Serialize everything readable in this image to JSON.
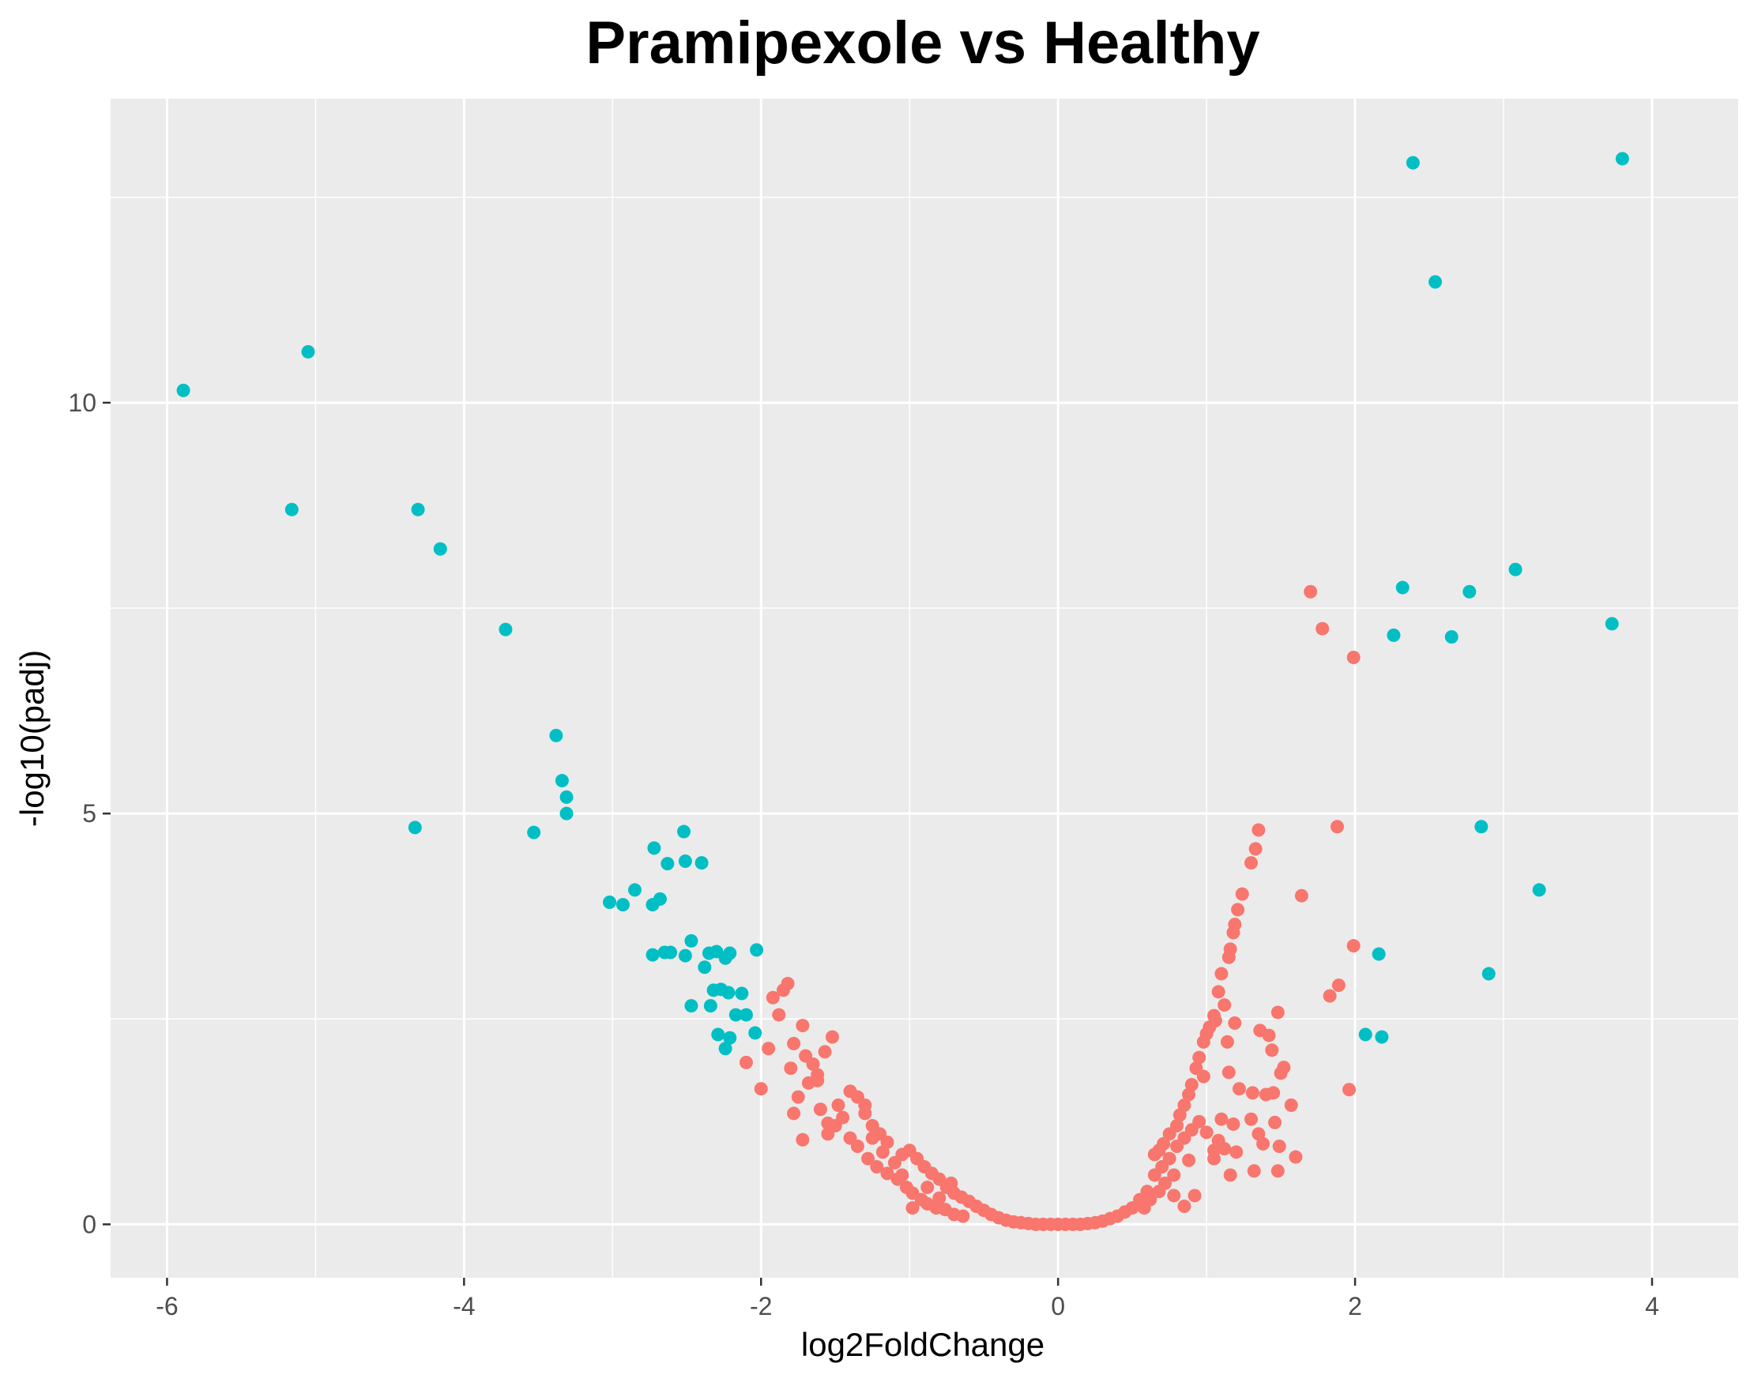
{
  "chart_data": {
    "type": "scatter",
    "title": "Pramipexole vs Healthy",
    "xlabel": "log2FoldChange",
    "ylabel": "-log10(padj)",
    "xlim": [
      -6.38,
      4.58
    ],
    "ylim": [
      -0.65,
      13.7
    ],
    "x_ticks": [
      -6,
      -4,
      -2,
      0,
      2,
      4
    ],
    "y_ticks": [
      0,
      5,
      10
    ],
    "grid": true,
    "legend": "none",
    "colors": {
      "panel": "#EBEBEB",
      "grid": "#FFFFFF",
      "significant": "#00BFC4",
      "not_significant": "#F8766D",
      "tick_text": "#4D4D4D"
    },
    "series": [
      {
        "color": "#00BFC4",
        "points": [
          [
            -5.89,
            10.15
          ],
          [
            -5.05,
            10.62
          ],
          [
            -5.16,
            8.7
          ],
          [
            -4.31,
            8.7
          ],
          [
            -4.16,
            8.22
          ],
          [
            -3.72,
            7.24
          ],
          [
            -4.33,
            4.83
          ],
          [
            -3.38,
            5.95
          ],
          [
            -3.34,
            5.4
          ],
          [
            -3.31,
            5.2
          ],
          [
            -3.31,
            5.0
          ],
          [
            -3.53,
            4.77
          ],
          [
            -2.72,
            4.58
          ],
          [
            -2.63,
            4.39
          ],
          [
            -2.52,
            4.78
          ],
          [
            -2.51,
            4.42
          ],
          [
            -2.4,
            4.4
          ],
          [
            -3.02,
            3.92
          ],
          [
            -2.93,
            3.89
          ],
          [
            -2.85,
            4.07
          ],
          [
            -2.73,
            3.89
          ],
          [
            -2.68,
            3.96
          ],
          [
            -2.73,
            3.28
          ],
          [
            -2.65,
            3.31
          ],
          [
            -2.61,
            3.31
          ],
          [
            -2.51,
            3.27
          ],
          [
            -2.47,
            3.45
          ],
          [
            -2.38,
            3.13
          ],
          [
            -2.35,
            3.3
          ],
          [
            -2.3,
            3.32
          ],
          [
            -2.24,
            3.24
          ],
          [
            -2.21,
            3.3
          ],
          [
            -2.03,
            3.34
          ],
          [
            -2.47,
            2.66
          ],
          [
            -2.32,
            2.85
          ],
          [
            -2.27,
            2.86
          ],
          [
            -2.22,
            2.82
          ],
          [
            -2.34,
            2.66
          ],
          [
            -2.13,
            2.81
          ],
          [
            -2.17,
            2.55
          ],
          [
            -2.1,
            2.55
          ],
          [
            -2.04,
            2.33
          ],
          [
            -2.29,
            2.31
          ],
          [
            -2.21,
            2.27
          ],
          [
            -2.24,
            2.14
          ],
          [
            2.39,
            12.92
          ],
          [
            2.54,
            11.47
          ],
          [
            3.8,
            12.97
          ],
          [
            2.32,
            7.75
          ],
          [
            2.26,
            7.17
          ],
          [
            2.65,
            7.15
          ],
          [
            2.77,
            7.7
          ],
          [
            3.08,
            7.97
          ],
          [
            3.73,
            7.31
          ],
          [
            2.85,
            4.84
          ],
          [
            3.24,
            4.07
          ],
          [
            2.16,
            3.29
          ],
          [
            2.9,
            3.05
          ],
          [
            2.07,
            2.31
          ],
          [
            2.18,
            2.28
          ]
        ]
      },
      {
        "color": "#F8766D",
        "points": [
          [
            1.7,
            7.7
          ],
          [
            1.78,
            7.25
          ],
          [
            1.99,
            6.9
          ],
          [
            1.88,
            4.84
          ],
          [
            1.64,
            4.0
          ],
          [
            1.99,
            3.39
          ],
          [
            1.89,
            2.91
          ],
          [
            1.83,
            2.78
          ],
          [
            1.96,
            1.64
          ],
          [
            1.48,
            2.58
          ],
          [
            1.36,
            2.36
          ],
          [
            1.42,
            2.3
          ],
          [
            1.44,
            2.12
          ],
          [
            1.52,
            1.91
          ],
          [
            1.5,
            1.84
          ],
          [
            1.45,
            1.6
          ],
          [
            1.4,
            1.58
          ],
          [
            1.31,
            1.6
          ],
          [
            1.57,
            1.45
          ],
          [
            1.46,
            1.24
          ],
          [
            1.35,
            1.1
          ],
          [
            1.38,
            0.98
          ],
          [
            1.49,
            0.95
          ],
          [
            1.6,
            0.82
          ],
          [
            1.48,
            0.65
          ],
          [
            1.32,
            0.65
          ],
          [
            1.33,
            4.57
          ],
          [
            1.35,
            4.8
          ],
          [
            1.3,
            4.4
          ],
          [
            1.24,
            4.02
          ],
          [
            1.21,
            3.83
          ],
          [
            1.19,
            3.65
          ],
          [
            1.18,
            3.55
          ],
          [
            1.16,
            3.35
          ],
          [
            1.15,
            3.25
          ],
          [
            1.1,
            3.05
          ],
          [
            1.08,
            2.83
          ],
          [
            1.12,
            2.67
          ],
          [
            1.05,
            2.54
          ],
          [
            1.06,
            2.48
          ],
          [
            1.02,
            2.4
          ],
          [
            1.0,
            2.32
          ],
          [
            0.98,
            2.22
          ],
          [
            1.14,
            2.22
          ],
          [
            0.95,
            2.03
          ],
          [
            0.93,
            1.9
          ],
          [
            0.98,
            1.8
          ],
          [
            0.9,
            1.7
          ],
          [
            0.88,
            1.58
          ],
          [
            0.85,
            1.45
          ],
          [
            0.82,
            1.33
          ],
          [
            0.8,
            1.2
          ],
          [
            0.75,
            1.1
          ],
          [
            0.71,
            0.98
          ],
          [
            0.68,
            0.9
          ],
          [
            0.65,
            0.85
          ],
          [
            1.19,
            2.45
          ],
          [
            1.15,
            1.85
          ],
          [
            1.22,
            1.65
          ],
          [
            1.3,
            1.28
          ],
          [
            1.18,
            1.22
          ],
          [
            1.1,
            1.28
          ],
          [
            1.08,
            1.02
          ],
          [
            1.12,
            0.92
          ],
          [
            1.2,
            0.88
          ],
          [
            1.16,
            0.6
          ],
          [
            1.05,
            0.8
          ],
          [
            0.92,
            0.35
          ],
          [
            0.85,
            0.22
          ],
          [
            0.78,
            0.35
          ],
          [
            0.6,
            0.4
          ],
          [
            0.55,
            0.3
          ],
          [
            0.5,
            0.2
          ],
          [
            0.45,
            0.15
          ],
          [
            0.4,
            0.1
          ],
          [
            0.35,
            0.07
          ],
          [
            0.3,
            0.04
          ],
          [
            0.25,
            0.02
          ],
          [
            0.2,
            0.01
          ],
          [
            0.15,
            0.0
          ],
          [
            0.1,
            0.0
          ],
          [
            0.05,
            0.0
          ],
          [
            0.0,
            0.0
          ],
          [
            -0.05,
            0.0
          ],
          [
            -0.1,
            0.0
          ],
          [
            -0.15,
            0.0
          ],
          [
            -0.2,
            0.01
          ],
          [
            -0.25,
            0.02
          ],
          [
            -0.3,
            0.03
          ],
          [
            -0.35,
            0.05
          ],
          [
            -0.4,
            0.08
          ],
          [
            -0.45,
            0.12
          ],
          [
            -0.5,
            0.17
          ],
          [
            -0.55,
            0.22
          ],
          [
            -0.6,
            0.28
          ],
          [
            -0.65,
            0.33
          ],
          [
            -0.7,
            0.38
          ],
          [
            -0.75,
            0.45
          ],
          [
            -0.8,
            0.55
          ],
          [
            -0.85,
            0.62
          ],
          [
            -0.9,
            0.7
          ],
          [
            -0.95,
            0.8
          ],
          [
            -1.0,
            0.9
          ],
          [
            -1.05,
            0.85
          ],
          [
            -1.1,
            0.75
          ],
          [
            -1.15,
            1.0
          ],
          [
            -1.2,
            1.1
          ],
          [
            -1.25,
            1.2
          ],
          [
            -1.3,
            1.35
          ],
          [
            -1.35,
            1.55
          ],
          [
            -1.4,
            1.62
          ],
          [
            -1.45,
            1.3
          ],
          [
            -1.5,
            1.2
          ],
          [
            -1.55,
            1.1
          ],
          [
            -1.6,
            1.4
          ],
          [
            -1.62,
            1.75
          ],
          [
            -1.65,
            1.95
          ],
          [
            -1.7,
            2.05
          ],
          [
            -1.72,
            2.42
          ],
          [
            -1.78,
            2.2
          ],
          [
            -1.8,
            1.9
          ],
          [
            -1.85,
            2.85
          ],
          [
            -1.82,
            2.93
          ],
          [
            -1.88,
            2.55
          ],
          [
            -1.92,
            2.76
          ],
          [
            -1.95,
            2.14
          ],
          [
            -2.0,
            1.65
          ],
          [
            -2.1,
            1.97
          ],
          [
            -1.75,
            1.55
          ],
          [
            -1.72,
            1.03
          ],
          [
            -1.78,
            1.35
          ],
          [
            -1.68,
            1.72
          ],
          [
            -1.55,
            1.23
          ],
          [
            -1.48,
            1.45
          ],
          [
            -1.4,
            1.05
          ],
          [
            -1.35,
            0.95
          ],
          [
            -1.28,
            0.8
          ],
          [
            -1.22,
            0.7
          ],
          [
            -1.15,
            0.62
          ],
          [
            -1.08,
            0.55
          ],
          [
            -1.02,
            0.45
          ],
          [
            -0.98,
            0.38
          ],
          [
            -0.92,
            0.3
          ],
          [
            -0.88,
            0.25
          ],
          [
            -0.82,
            0.2
          ],
          [
            -0.76,
            0.18
          ],
          [
            -0.7,
            0.12
          ],
          [
            -0.64,
            0.1
          ],
          [
            -1.52,
            2.28
          ],
          [
            -1.57,
            2.1
          ],
          [
            -1.62,
            1.82
          ],
          [
            -1.3,
            1.45
          ],
          [
            -1.25,
            1.05
          ],
          [
            -1.18,
            0.88
          ],
          [
            -1.05,
            0.6
          ],
          [
            -0.98,
            0.2
          ],
          [
            -0.88,
            0.45
          ],
          [
            -0.8,
            0.32
          ],
          [
            -0.72,
            0.5
          ],
          [
            0.65,
            0.6
          ],
          [
            0.7,
            0.7
          ],
          [
            0.75,
            0.8
          ],
          [
            0.8,
            0.95
          ],
          [
            0.85,
            1.05
          ],
          [
            0.9,
            1.15
          ],
          [
            0.95,
            1.25
          ],
          [
            1.0,
            1.12
          ],
          [
            1.05,
            0.9
          ],
          [
            0.88,
            0.78
          ],
          [
            0.78,
            0.6
          ],
          [
            0.72,
            0.5
          ],
          [
            0.68,
            0.4
          ],
          [
            0.62,
            0.3
          ],
          [
            0.58,
            0.2
          ]
        ]
      }
    ]
  }
}
